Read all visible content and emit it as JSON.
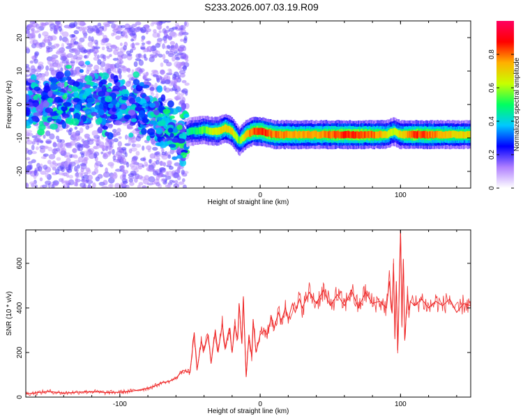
{
  "title": "S233.2026.007.03.19.R09",
  "chart_data": [
    {
      "type": "heatmap",
      "xlabel": "Height of straight line (km)",
      "ylabel": "Frequency (Hz)",
      "xlim": [
        -167,
        150
      ],
      "ylim": [
        -25,
        25
      ],
      "xticks": [
        -100,
        0,
        100
      ],
      "yticks": [
        -20,
        -10,
        0,
        10,
        20
      ],
      "colorbar": {
        "label": "Normalized spectral amplitude",
        "range": [
          0,
          1
        ],
        "ticks": [
          0.0,
          0.2,
          0.4,
          0.6,
          0.8
        ],
        "colors": [
          "#ffffff",
          "#b080ff",
          "#0000ff",
          "#00c8ff",
          "#00ff60",
          "#c8ff00",
          "#ffb000",
          "#ff0000",
          "#ff0060"
        ]
      },
      "series": [
        {
          "x": [
            -165,
            -150,
            -140,
            -130,
            -120,
            -110,
            -100,
            -90,
            -80,
            -70,
            -60,
            -55,
            -50,
            -45,
            -40,
            -35,
            -30,
            -25,
            -20,
            -15,
            -10,
            -5,
            0,
            10,
            20,
            30,
            40,
            50,
            60,
            70,
            80,
            90,
            95,
            100,
            105,
            110,
            120,
            130,
            140,
            150
          ],
          "ridge_frequency": [
            0,
            1,
            2,
            1,
            2,
            1,
            1,
            0,
            -2,
            -5,
            -9,
            -9,
            -8,
            -8,
            -7.5,
            -8,
            -8,
            -7,
            -8,
            -11,
            -9,
            -8,
            -8,
            -9,
            -9,
            -9,
            -9,
            -9,
            -9,
            -9,
            -9,
            -9,
            -8,
            -9,
            -9,
            -9,
            -9,
            -9,
            -9,
            -9
          ],
          "amplitude": [
            0.3,
            0.35,
            0.35,
            0.3,
            0.3,
            0.3,
            0.3,
            0.3,
            0.3,
            0.35,
            0.4,
            0.4,
            0.45,
            0.5,
            0.55,
            0.6,
            0.65,
            0.7,
            0.7,
            0.55,
            0.75,
            0.8,
            0.85,
            0.8,
            0.75,
            0.75,
            0.75,
            0.8,
            0.85,
            0.85,
            0.8,
            0.7,
            0.6,
            0.7,
            0.75,
            0.85,
            0.8,
            0.75,
            0.7,
            0.7
          ]
        }
      ]
    },
    {
      "type": "line",
      "xlabel": "Height of straight line (km)",
      "ylabel": "SNR (10 * v/v)",
      "xlim": [
        -167,
        150
      ],
      "ylim": [
        0,
        750
      ],
      "xticks": [
        -100,
        0,
        100
      ],
      "yticks": [
        0,
        200,
        400,
        600
      ],
      "color": "#ee2222",
      "x": [
        -167,
        -150,
        -140,
        -130,
        -120,
        -110,
        -100,
        -90,
        -80,
        -75,
        -70,
        -65,
        -60,
        -55,
        -50,
        -47,
        -45,
        -42,
        -40,
        -37,
        -35,
        -32,
        -30,
        -27,
        -25,
        -22,
        -20,
        -18,
        -16,
        -15,
        -13,
        -12,
        -10,
        -8,
        -6,
        -5,
        -3,
        0,
        3,
        5,
        8,
        10,
        13,
        15,
        18,
        20,
        23,
        25,
        28,
        30,
        35,
        40,
        45,
        50,
        55,
        60,
        65,
        70,
        75,
        80,
        85,
        90,
        92,
        94,
        95,
        96,
        97,
        98,
        99,
        100,
        101,
        102,
        103,
        105,
        106,
        107,
        110,
        115,
        120,
        125,
        130,
        135,
        140,
        145,
        150
      ],
      "y": [
        15,
        25,
        18,
        22,
        25,
        20,
        22,
        28,
        40,
        50,
        65,
        70,
        85,
        120,
        110,
        290,
        120,
        250,
        210,
        280,
        150,
        300,
        200,
        330,
        220,
        310,
        200,
        320,
        260,
        420,
        240,
        450,
        90,
        280,
        180,
        350,
        200,
        280,
        300,
        280,
        360,
        310,
        380,
        340,
        400,
        350,
        420,
        380,
        440,
        400,
        470,
        420,
        480,
        410,
        460,
        410,
        480,
        400,
        470,
        420,
        430,
        400,
        520,
        380,
        600,
        260,
        520,
        210,
        460,
        750,
        320,
        620,
        260,
        460,
        390,
        430,
        410,
        440,
        400,
        430,
        410,
        440,
        380,
        420,
        410
      ]
    }
  ]
}
